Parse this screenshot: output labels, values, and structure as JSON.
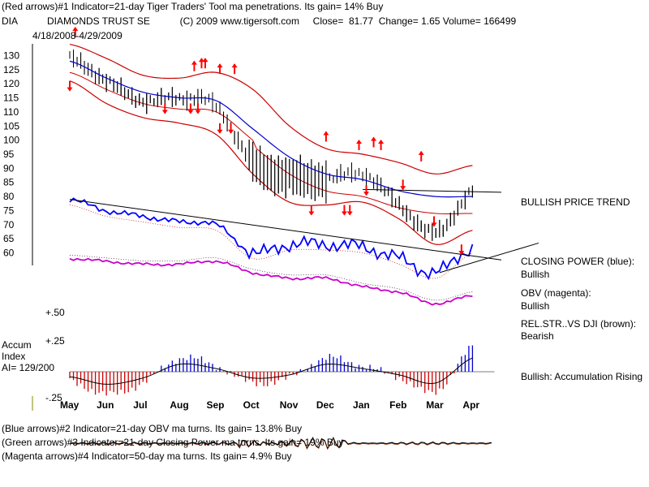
{
  "header": {
    "line1": "(Red arrows)#1 Indicator=21-day Tiger Traders' Tool ma penetrations. Its gain= 14% Buy",
    "line2": "DIA           DIAMONDS TRUST SE           (C) 2009 www.tigersoft.com     Close=  81.77  Change= 1.65 Volume= 166499",
    "date_range": "4/18/2008-4/29/2009"
  },
  "footer": {
    "blue": "(Blue arrows)#2 Indicator=21-day OBV ma turns. Its gain= 13.8% Buy",
    "green": "(Green arrows)#3 Indicator=21-day Closing Power ma turns. Its gain= 19% Buy",
    "magenta": "(Magenta arrows)#4 Indicator=50-day ma turns. Its gain= 4.9% Buy"
  },
  "side_labels": {
    "price_trend": "BULLISH PRICE TREND",
    "cp_title": "CLOSING POWER (blue):",
    "cp_value": "Bullish",
    "obv_title": "OBV (magenta):",
    "obv_value": "Bullish",
    "rel_title": "REL.STR..VS DJI (brown):",
    "rel_value": "Bearish",
    "accum_status": "Bullish: Accumulation Rising"
  },
  "accum_panel": {
    "title": "Accum",
    "subtitle": "Index",
    "ai": "AI= 129/200",
    "upper_label": "+.50",
    "mid_label": "+.25",
    "lower_label": "-.25"
  },
  "colors": {
    "price_bars": "#000000",
    "bands": "#cc0000",
    "ma": "#0000cc",
    "closing_power": "#0000ff",
    "obv": "#cc00cc",
    "accum_pos": "#0000cc",
    "accum_neg": "#cc0000",
    "arrows_red": "#ff0000"
  },
  "chart_data": {
    "type": "line",
    "title": "DIAMONDS TRUST SE",
    "ticker": "DIA",
    "x_ticks": [
      "May",
      "Jun",
      "Jul",
      "Aug",
      "Sep",
      "Oct",
      "Nov",
      "Dec",
      "Jan",
      "Feb",
      "Mar",
      "Apr"
    ],
    "y_ticks": [
      130,
      125,
      120,
      115,
      110,
      105,
      100,
      95,
      90,
      85,
      80,
      75,
      70,
      65,
      60
    ],
    "ylim": [
      57,
      133
    ],
    "price_close_monthly": [
      129,
      121,
      114,
      115,
      112,
      92,
      87,
      86,
      88,
      77,
      67,
      81.77
    ],
    "ma_monthly": [
      128,
      122,
      117,
      115,
      114,
      104,
      94,
      88,
      86,
      82,
      80,
      80
    ],
    "upper_band_monthly": [
      134,
      129,
      123,
      122,
      124,
      118,
      105,
      97,
      95,
      92,
      88,
      91
    ],
    "lower_band_monthly": [
      121,
      113,
      108,
      106,
      102,
      88,
      78,
      77,
      78,
      72,
      63,
      68
    ],
    "closing_power_monthly": [
      79,
      75,
      73,
      71,
      70,
      60,
      63,
      63,
      62,
      58,
      53,
      62
    ],
    "obv_monthly": [
      58,
      57,
      56,
      56,
      57,
      53,
      51,
      51,
      48,
      46,
      42,
      45
    ],
    "accum_monthly": [
      -0.08,
      -0.2,
      -0.1,
      0.12,
      0.05,
      -0.1,
      -0.05,
      0.12,
      0.05,
      -0.05,
      -0.18,
      0.22
    ],
    "red_arrows_up": [
      {
        "month": 0,
        "price": 121
      },
      {
        "month": 2.6,
        "price": 113
      },
      {
        "month": 3.3,
        "price": 113
      },
      {
        "month": 3.5,
        "price": 113
      },
      {
        "month": 4.1,
        "price": 106
      },
      {
        "month": 4.4,
        "price": 106
      },
      {
        "month": 6.6,
        "price": 77
      },
      {
        "month": 7.5,
        "price": 77
      },
      {
        "month": 7.65,
        "price": 77
      },
      {
        "month": 8.1,
        "price": 84
      },
      {
        "month": 9.1,
        "price": 86
      },
      {
        "month": 9.95,
        "price": 73
      },
      {
        "month": 10.7,
        "price": 63
      }
    ],
    "red_arrows_down": [
      {
        "month": 0.15,
        "price": 133
      },
      {
        "month": 3.4,
        "price": 121
      },
      {
        "month": 3.6,
        "price": 122
      },
      {
        "month": 3.7,
        "price": 122
      },
      {
        "month": 4.1,
        "price": 120
      },
      {
        "month": 4.5,
        "price": 120
      },
      {
        "month": 7.0,
        "price": 96
      },
      {
        "month": 7.9,
        "price": 93
      },
      {
        "month": 8.3,
        "price": 94
      },
      {
        "month": 8.5,
        "price": 93
      },
      {
        "month": 9.6,
        "price": 89
      }
    ]
  }
}
